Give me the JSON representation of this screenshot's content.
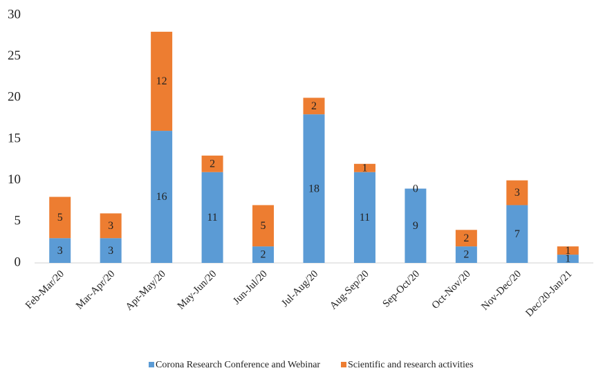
{
  "chart_data": {
    "type": "stacked_bar",
    "categories": [
      "Feb-Mar/20",
      "Mar-Apr/20",
      "Apr-May/20",
      "May-Jun/20",
      "Jun-Jul/20",
      "Jul-Aug/20",
      "Aug-Sep/20",
      "Sep-Oct/20",
      "Oct-Nov/20",
      "Nov-Dec/20",
      "Dec/20-Jan/21"
    ],
    "series": [
      {
        "name": "Corona Research Conference and Webinar",
        "color": "#5b9bd5",
        "values": [
          3,
          3,
          16,
          11,
          2,
          18,
          11,
          9,
          2,
          7,
          1
        ]
      },
      {
        "name": "Scientific and research activities",
        "color": "#ed7d31",
        "values": [
          5,
          3,
          12,
          2,
          5,
          2,
          1,
          0,
          2,
          3,
          1
        ]
      }
    ],
    "ylim": [
      0,
      30
    ],
    "yticks": [
      0,
      5,
      10,
      15,
      20,
      25,
      30
    ],
    "legend": "bottom"
  }
}
